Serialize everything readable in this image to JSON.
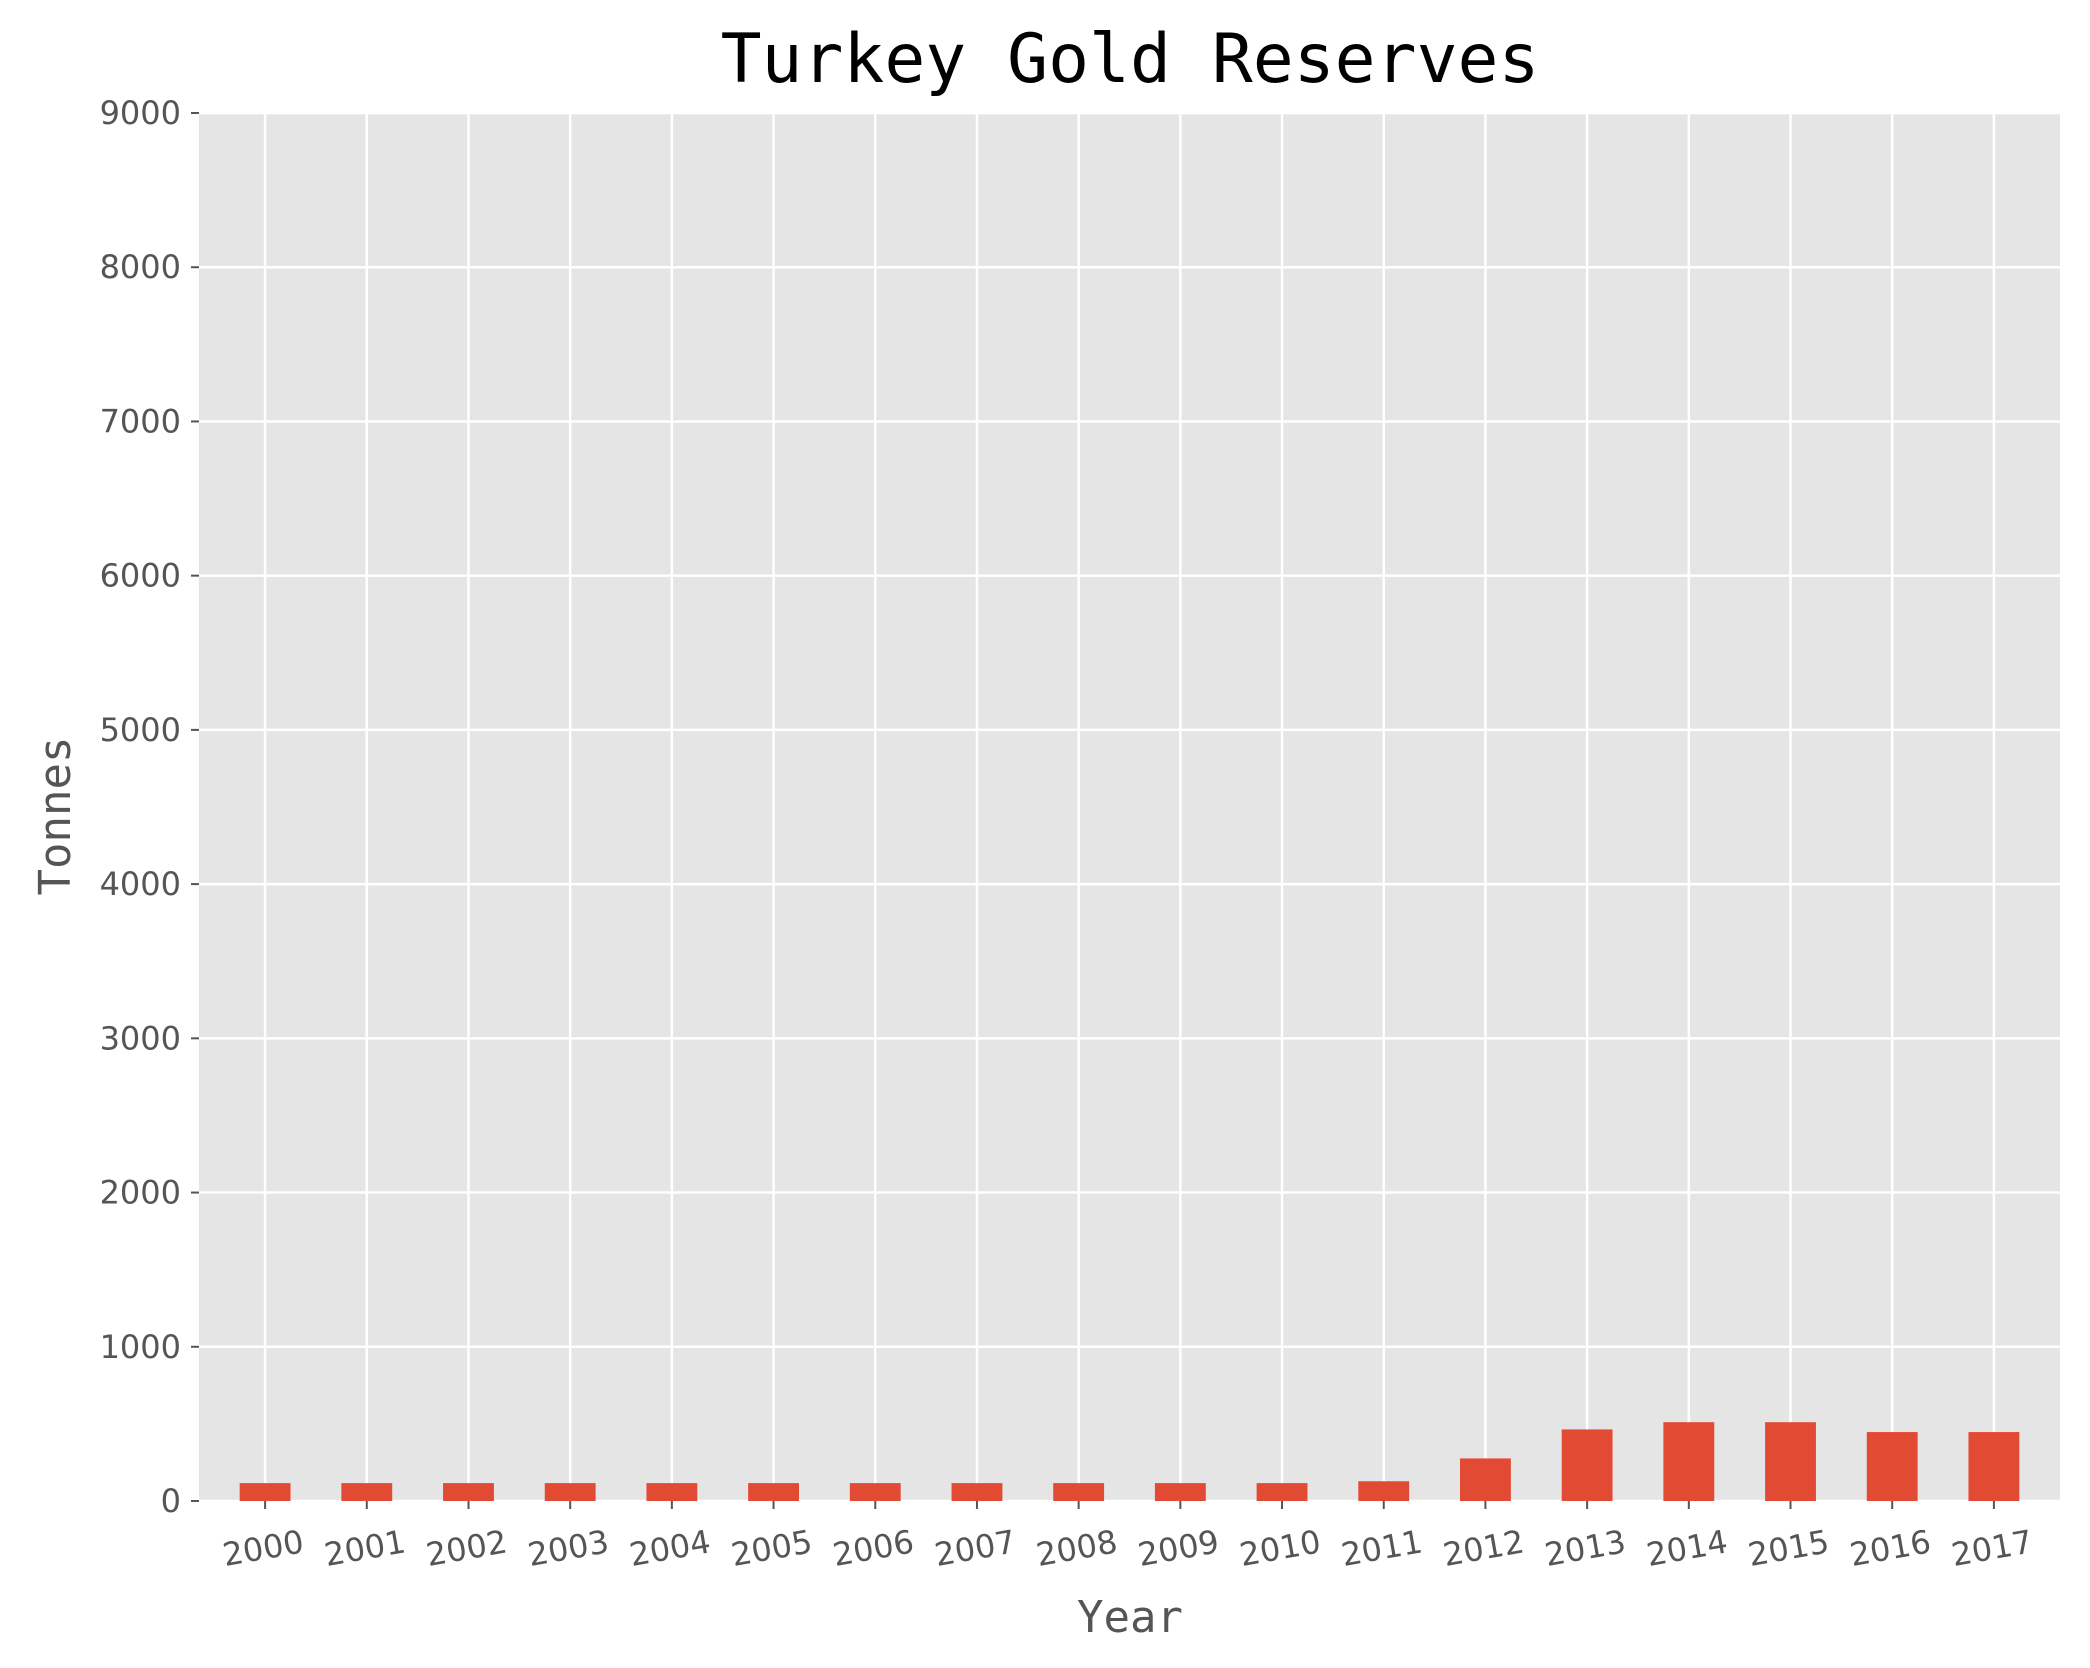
{
  "chart_data": {
    "type": "bar",
    "title": "Turkey Gold Reserves",
    "xlabel": "Year",
    "ylabel": "Tonnes",
    "categories": [
      "2000",
      "2001",
      "2002",
      "2003",
      "2004",
      "2005",
      "2006",
      "2007",
      "2008",
      "2009",
      "2010",
      "2011",
      "2012",
      "2013",
      "2014",
      "2015",
      "2016",
      "2017"
    ],
    "values": [
      116,
      116,
      116,
      116,
      116,
      116,
      116,
      116,
      116,
      116,
      116,
      128,
      276,
      464,
      511,
      511,
      447,
      447
    ],
    "ylim": [
      0,
      9000
    ],
    "yticks": [
      0,
      1000,
      2000,
      3000,
      4000,
      5000,
      6000,
      7000,
      8000,
      9000
    ],
    "grid": true,
    "bar_color": "#E24A33",
    "background_color": "#E5E5E5",
    "grid_color": "#FFFFFF"
  }
}
